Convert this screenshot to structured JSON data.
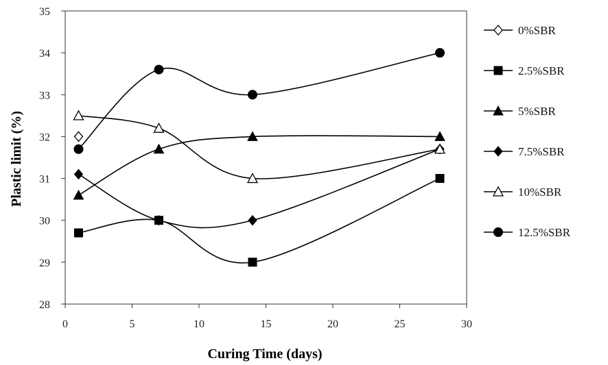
{
  "chart_data": {
    "type": "line",
    "xlabel": "Curing Time (days)",
    "ylabel": "Plastic limit (%)",
    "xlim": [
      0,
      30
    ],
    "ylim": [
      28,
      35
    ],
    "xticks": [
      0,
      5,
      10,
      15,
      20,
      25,
      30
    ],
    "yticks": [
      28,
      29,
      30,
      31,
      32,
      33,
      34,
      35
    ],
    "x": [
      1,
      7,
      14,
      28
    ],
    "grid": false,
    "legend_position": "right",
    "series": [
      {
        "name": "0%SBR",
        "marker": "diamond-open",
        "values": [
          32.0,
          null,
          null,
          null
        ]
      },
      {
        "name": "2.5%SBR",
        "marker": "square",
        "values": [
          29.7,
          30.0,
          29.0,
          31.0
        ]
      },
      {
        "name": "5%SBR",
        "marker": "triangle",
        "values": [
          30.6,
          31.7,
          32.0,
          32.0
        ]
      },
      {
        "name": "7.5%SBR",
        "marker": "diamond",
        "values": [
          31.1,
          30.0,
          30.0,
          31.7
        ]
      },
      {
        "name": "10%SBR",
        "marker": "triangle-open",
        "values": [
          32.5,
          32.2,
          31.0,
          31.7
        ]
      },
      {
        "name": "12.5%SBR",
        "marker": "circle",
        "values": [
          31.7,
          33.6,
          33.0,
          34.0
        ]
      }
    ]
  }
}
